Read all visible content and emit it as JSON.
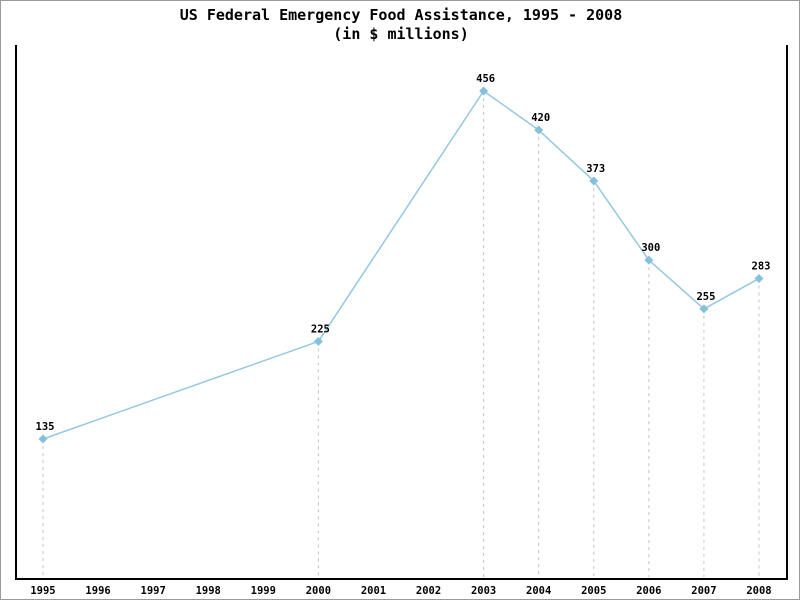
{
  "chart_data": {
    "type": "line",
    "title": "US Federal Emergency Food Assistance, 1995 - 2008",
    "subtitle": "(in $ millions)",
    "x": [
      1995,
      2000,
      2003,
      2004,
      2005,
      2006,
      2007,
      2008
    ],
    "values": [
      135,
      225,
      456,
      420,
      373,
      300,
      255,
      283
    ],
    "x_ticks": [
      "1995",
      "1996",
      "1997",
      "1998",
      "1999",
      "2000",
      "2001",
      "2002",
      "2003",
      "2004",
      "2005",
      "2006",
      "2007",
      "2008"
    ],
    "xlim": [
      1995,
      2008
    ],
    "ylim": [
      0,
      500
    ],
    "xlabel": "",
    "ylabel": "",
    "legend": "none",
    "y_axis_labels_visible": false,
    "grid": "vertical-dashed-at-data-points-only",
    "marker": "diamond",
    "point_labels_visible": true,
    "colors": {
      "series_line": "#94c8e1",
      "marker_fill": "#85c0dc",
      "gridline": "#c4c4c4",
      "axis": "#000000",
      "text": "#000000",
      "frame_border": "#9a9a9a",
      "background": "#ffffff"
    }
  }
}
